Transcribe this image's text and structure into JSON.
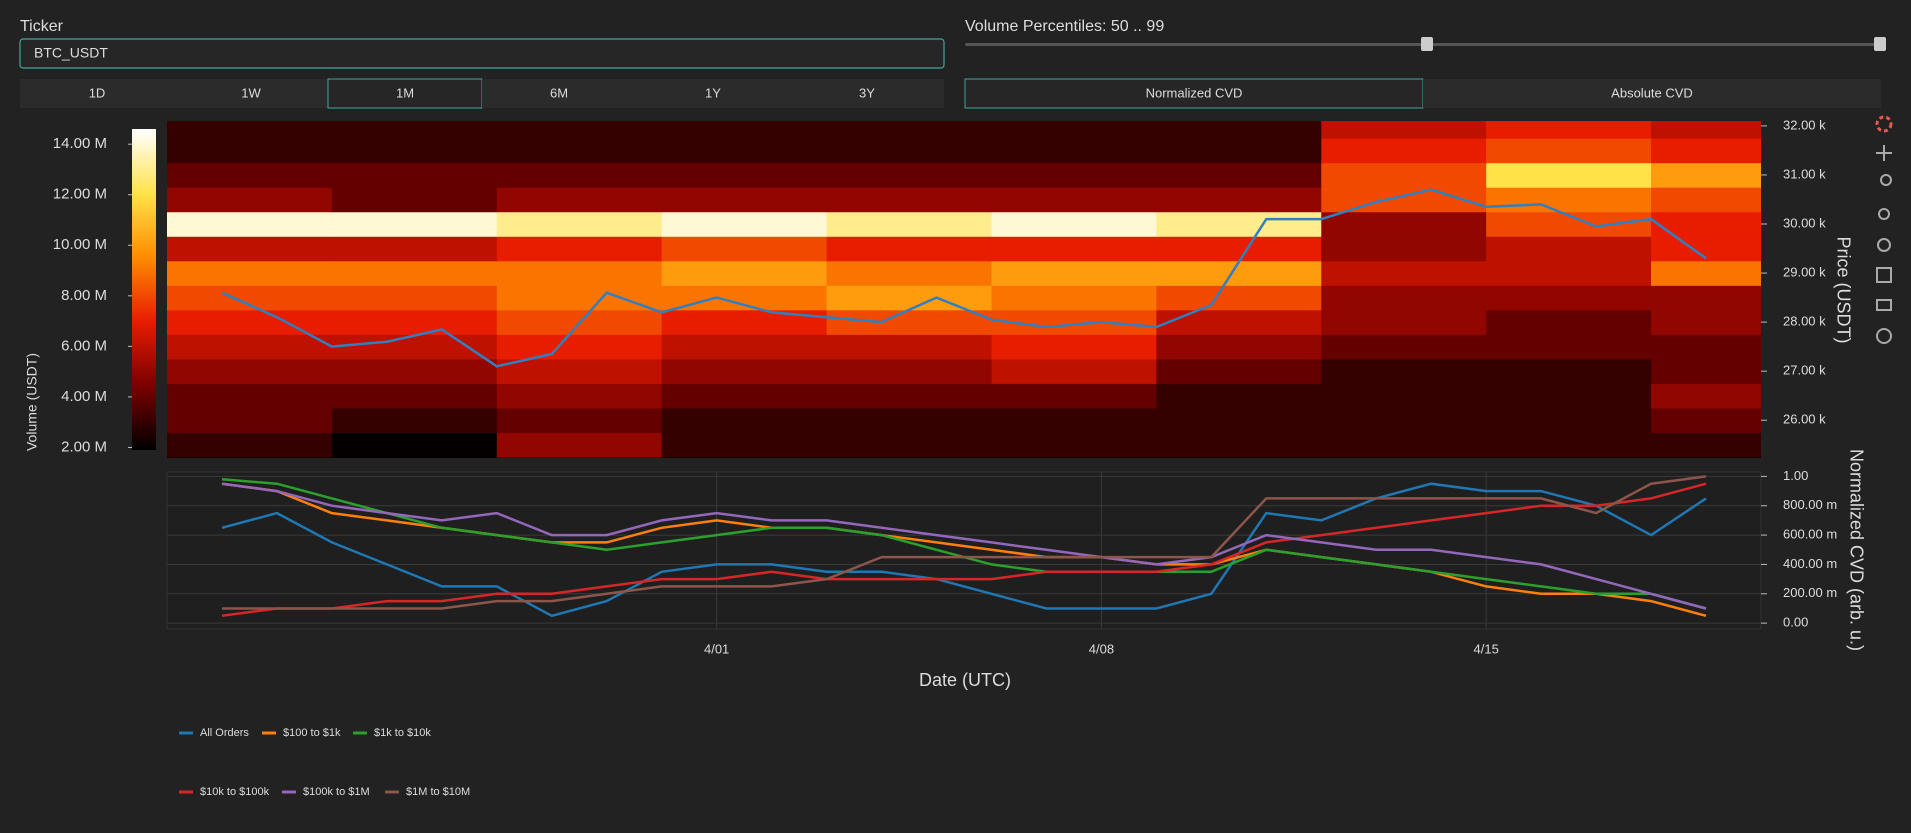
{
  "controls": {
    "ticker_label": "Ticker",
    "ticker_value": "BTC_USDT",
    "percentile_label": "Volume Percentiles: 50 .. 99",
    "ranges": [
      "1D",
      "1W",
      "1M",
      "6M",
      "1Y",
      "3Y"
    ],
    "active_range": 2,
    "cvd_modes": [
      "Normalized CVD",
      "Absolute CVD"
    ],
    "active_cvd_mode": 0
  },
  "chart_data": [
    {
      "type": "heatmap",
      "y_label": "Price (USDT)",
      "colorbar_title": "Volume (USDT)",
      "xlim": [
        "3/22",
        "4/20"
      ],
      "ylim": [
        25230,
        32100
      ],
      "yticks": [
        {
          "value": 26000,
          "label": "26.00 k"
        },
        {
          "value": 27000,
          "label": "27.00 k"
        },
        {
          "value": 28000,
          "label": "28.00 k"
        },
        {
          "value": 29000,
          "label": "29.00 k"
        },
        {
          "value": 30000,
          "label": "30.00 k"
        },
        {
          "value": 31000,
          "label": "31.00 k"
        },
        {
          "value": 32000,
          "label": "32.00 k"
        }
      ],
      "zlim": [
        1900000,
        14600000
      ],
      "zticks": [
        {
          "value": 2000000,
          "label": "2.00 M"
        },
        {
          "value": 4000000,
          "label": "4.00 M"
        },
        {
          "value": 6000000,
          "label": "6.00 M"
        },
        {
          "value": 8000000,
          "label": "8.00 M"
        },
        {
          "value": 10000000,
          "label": "10.00 M"
        },
        {
          "value": 12000000,
          "label": "12.00 M"
        },
        {
          "value": 14000000,
          "label": "14.00 M"
        }
      ],
      "colorscale": [
        "#000000",
        "#7a0000",
        "#e81c00",
        "#ff8c00",
        "#ffe34a",
        "#ffffff"
      ],
      "heatmap": {
        "x": [
          "3/22",
          "3/25",
          "3/28",
          "3/31",
          "4/03",
          "4/06",
          "4/09",
          "4/12",
          "4/15",
          "4/18"
        ],
        "y": [
          25500,
          26000,
          26500,
          27000,
          27500,
          28000,
          28500,
          29000,
          29500,
          30000,
          30500,
          31000,
          31500,
          32000
        ],
        "z": [
          [
            3000000,
            2000000,
            5000000,
            3000000,
            3000000,
            3000000,
            3000000,
            3000000,
            3000000,
            3000000
          ],
          [
            4000000,
            3000000,
            4000000,
            3000000,
            3000000,
            3000000,
            3000000,
            3000000,
            3000000,
            4000000
          ],
          [
            4000000,
            4000000,
            5000000,
            4000000,
            4000000,
            4000000,
            3000000,
            3000000,
            3000000,
            5000000
          ],
          [
            5000000,
            5000000,
            6000000,
            5000000,
            5000000,
            6000000,
            4000000,
            3000000,
            3000000,
            4000000
          ],
          [
            6000000,
            6000000,
            7000000,
            6000000,
            6000000,
            7000000,
            5000000,
            4000000,
            4000000,
            4000000
          ],
          [
            7000000,
            7000000,
            8000000,
            7000000,
            8000000,
            8000000,
            6000000,
            5000000,
            4000000,
            5000000
          ],
          [
            8000000,
            8000000,
            9000000,
            9000000,
            10000000,
            9000000,
            8000000,
            5000000,
            5000000,
            5000000
          ],
          [
            9000000,
            9000000,
            9000000,
            10000000,
            9000000,
            10000000,
            10000000,
            6000000,
            6000000,
            9000000
          ],
          [
            6000000,
            6000000,
            7000000,
            8000000,
            7000000,
            7000000,
            7000000,
            5000000,
            6000000,
            7000000
          ],
          [
            14000000,
            14000000,
            13000000,
            14000000,
            13000000,
            14000000,
            13000000,
            5000000,
            8000000,
            7000000
          ],
          [
            5000000,
            4000000,
            5000000,
            5000000,
            5000000,
            5000000,
            5000000,
            8000000,
            9000000,
            8000000
          ],
          [
            4000000,
            4000000,
            4000000,
            4000000,
            4000000,
            4000000,
            4000000,
            8000000,
            12000000,
            10000000
          ],
          [
            3000000,
            3000000,
            3000000,
            3000000,
            3000000,
            3000000,
            3000000,
            7000000,
            8000000,
            7000000
          ],
          [
            3000000,
            3000000,
            3000000,
            3000000,
            3000000,
            3000000,
            3000000,
            6000000,
            7000000,
            6000000
          ]
        ]
      },
      "x": [
        "3/23",
        "3/24",
        "3/25",
        "3/26",
        "3/27",
        "3/28",
        "3/29",
        "3/30",
        "3/31",
        "4/01",
        "4/02",
        "4/03",
        "4/04",
        "4/05",
        "4/06",
        "4/07",
        "4/08",
        "4/09",
        "4/10",
        "4/11",
        "4/12",
        "4/13",
        "4/14",
        "4/15",
        "4/16",
        "4/17",
        "4/18",
        "4/19"
      ],
      "values": [
        28600,
        28100,
        27500,
        27600,
        27850,
        27100,
        27350,
        28600,
        28200,
        28500,
        28200,
        28100,
        28000,
        28500,
        28050,
        27900,
        28000,
        27900,
        28350,
        30100,
        30100,
        30450,
        30700,
        30350,
        30400,
        29950,
        30100,
        29300
      ],
      "color": "#2f7fc1"
    },
    {
      "type": "line",
      "x_label": "Date (UTC)",
      "y_label": "Normalized CVD (arb. u.)",
      "xlim": [
        "3/22",
        "4/20"
      ],
      "xticks": [
        "4/01",
        "4/08",
        "4/15"
      ],
      "ylim": [
        -0.04,
        1.03
      ],
      "yticks": [
        {
          "value": 0,
          "label": "0.00"
        },
        {
          "value": 0.2,
          "label": "200.00 m"
        },
        {
          "value": 0.4,
          "label": "400.00 m"
        },
        {
          "value": 0.6,
          "label": "600.00 m"
        },
        {
          "value": 0.8,
          "label": "800.00 m"
        },
        {
          "value": 1,
          "label": "1.00"
        }
      ],
      "grid": true,
      "x": [
        "3/23",
        "3/24",
        "3/25",
        "3/26",
        "3/27",
        "3/28",
        "3/29",
        "3/30",
        "3/31",
        "4/01",
        "4/02",
        "4/03",
        "4/04",
        "4/05",
        "4/06",
        "4/07",
        "4/08",
        "4/09",
        "4/10",
        "4/11",
        "4/12",
        "4/13",
        "4/14",
        "4/15",
        "4/16",
        "4/17",
        "4/18",
        "4/19"
      ],
      "series": [
        {
          "name": "All Orders",
          "color": "#1f77b4",
          "values": [
            0.65,
            0.75,
            0.55,
            0.4,
            0.25,
            0.25,
            0.05,
            0.15,
            0.35,
            0.4,
            0.4,
            0.35,
            0.35,
            0.3,
            0.2,
            0.1,
            0.1,
            0.1,
            0.2,
            0.75,
            0.7,
            0.85,
            0.95,
            0.9,
            0.9,
            0.8,
            0.6,
            0.85
          ]
        },
        {
          "name": "$100 to $1k",
          "color": "#ff7f0e",
          "values": [
            0.95,
            0.9,
            0.75,
            0.7,
            0.65,
            0.6,
            0.55,
            0.55,
            0.65,
            0.7,
            0.65,
            0.65,
            0.6,
            0.55,
            0.5,
            0.45,
            0.45,
            0.4,
            0.4,
            0.5,
            0.45,
            0.4,
            0.35,
            0.25,
            0.2,
            0.2,
            0.15,
            0.05
          ]
        },
        {
          "name": "$1k to $10k",
          "color": "#2ca02c",
          "values": [
            0.98,
            0.95,
            0.85,
            0.75,
            0.65,
            0.6,
            0.55,
            0.5,
            0.55,
            0.6,
            0.65,
            0.65,
            0.6,
            0.5,
            0.4,
            0.35,
            0.35,
            0.35,
            0.35,
            0.5,
            0.45,
            0.4,
            0.35,
            0.3,
            0.25,
            0.2,
            0.2,
            0.1
          ]
        },
        {
          "name": "$10k to $100k",
          "color": "#d62728",
          "values": [
            0.05,
            0.1,
            0.1,
            0.15,
            0.15,
            0.2,
            0.2,
            0.25,
            0.3,
            0.3,
            0.35,
            0.3,
            0.3,
            0.3,
            0.3,
            0.35,
            0.35,
            0.35,
            0.4,
            0.55,
            0.6,
            0.65,
            0.7,
            0.75,
            0.8,
            0.8,
            0.85,
            0.95
          ]
        },
        {
          "name": "$100k to $1M",
          "color": "#9467bd",
          "values": [
            0.95,
            0.9,
            0.8,
            0.75,
            0.7,
            0.75,
            0.6,
            0.6,
            0.7,
            0.75,
            0.7,
            0.7,
            0.65,
            0.6,
            0.55,
            0.5,
            0.45,
            0.4,
            0.45,
            0.6,
            0.55,
            0.5,
            0.5,
            0.45,
            0.4,
            0.3,
            0.2,
            0.1
          ]
        },
        {
          "name": "$1M to $10M",
          "color": "#8c564b",
          "values": [
            0.1,
            0.1,
            0.1,
            0.1,
            0.1,
            0.15,
            0.15,
            0.2,
            0.25,
            0.25,
            0.25,
            0.3,
            0.45,
            0.45,
            0.45,
            0.45,
            0.45,
            0.45,
            0.45,
            0.85,
            0.85,
            0.85,
            0.85,
            0.85,
            0.85,
            0.75,
            0.95,
            1
          ]
        }
      ]
    }
  ]
}
